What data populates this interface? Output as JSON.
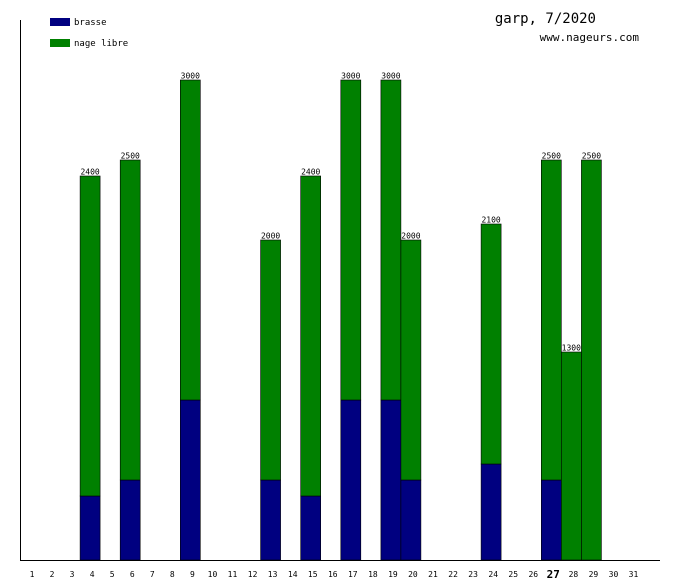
{
  "header": {
    "title": "garp, 7/2020",
    "url": "www.nageurs.com"
  },
  "legend": [
    {
      "label": "brasse",
      "color": "#000080"
    },
    {
      "label": "nage libre",
      "color": "#008000"
    }
  ],
  "highlight_day": 27,
  "chart_data": {
    "type": "bar",
    "stacked": true,
    "x_ticks": [
      1,
      2,
      3,
      4,
      5,
      6,
      7,
      8,
      9,
      10,
      11,
      12,
      13,
      14,
      15,
      16,
      17,
      18,
      19,
      20,
      21,
      22,
      23,
      24,
      25,
      26,
      27,
      28,
      29,
      30,
      31
    ],
    "ylim": [
      0,
      3000
    ],
    "grid": false,
    "legend_position": "top-left",
    "colors": {
      "brasse": "#000080",
      "nage libre": "#008000"
    },
    "series": [
      {
        "name": "brasse",
        "days": [
          3,
          5,
          8,
          12,
          14,
          16,
          18,
          19,
          23,
          26
        ],
        "values": [
          400,
          500,
          1000,
          500,
          400,
          1000,
          1000,
          500,
          600,
          500
        ]
      },
      {
        "name": "nage libre",
        "days": [
          3,
          5,
          8,
          12,
          14,
          16,
          18,
          19,
          23,
          26,
          27,
          28
        ],
        "values": [
          2000,
          2000,
          2000,
          1500,
          2000,
          2000,
          2000,
          1500,
          1500,
          2000,
          1300,
          2500
        ]
      }
    ],
    "totals": [
      {
        "day": 3,
        "value": 2400
      },
      {
        "day": 5,
        "value": 2500
      },
      {
        "day": 8,
        "value": 3000
      },
      {
        "day": 12,
        "value": 2000
      },
      {
        "day": 14,
        "value": 2400
      },
      {
        "day": 16,
        "value": 3000
      },
      {
        "day": 18,
        "value": 3000
      },
      {
        "day": 19,
        "value": 2000
      },
      {
        "day": 23,
        "value": 2100
      },
      {
        "day": 26,
        "value": 2500
      },
      {
        "day": 27,
        "value": 1300
      },
      {
        "day": 28,
        "value": 2500
      }
    ]
  }
}
